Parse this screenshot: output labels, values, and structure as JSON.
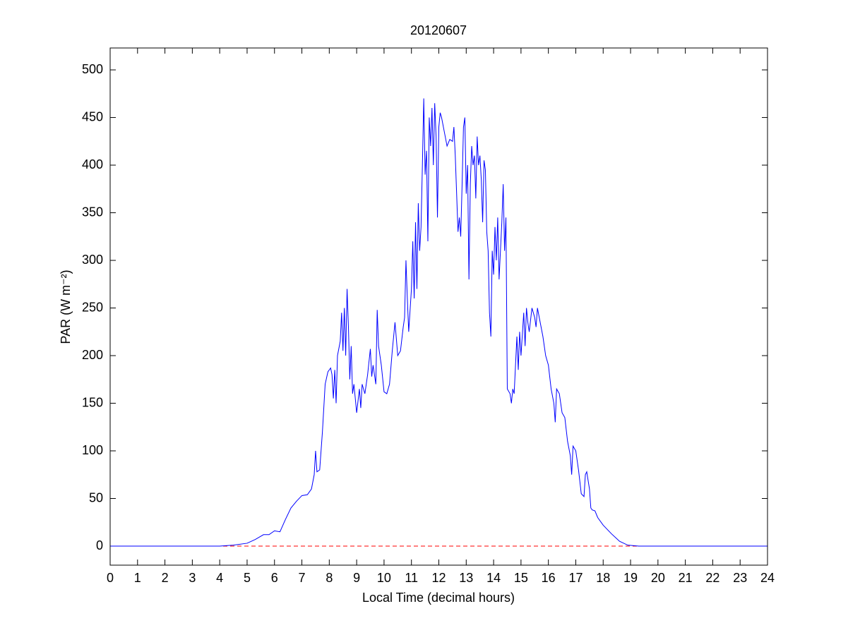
{
  "chart_data": {
    "type": "line",
    "title": "20120607",
    "xlabel": "Local Time (decimal hours)",
    "ylabel": "PAR (W m⁻²)",
    "xlim": [
      0,
      24
    ],
    "ylim": [
      -20,
      523
    ],
    "xticks": [
      0,
      1,
      2,
      3,
      4,
      5,
      6,
      7,
      8,
      9,
      10,
      11,
      12,
      13,
      14,
      15,
      16,
      17,
      18,
      19,
      20,
      21,
      22,
      23,
      24
    ],
    "yticks": [
      0,
      50,
      100,
      150,
      200,
      250,
      300,
      350,
      400,
      450,
      500
    ],
    "series": [
      {
        "color": "#0000ff",
        "linestyle": "solid",
        "x": [
          0,
          4,
          4.5,
          5,
          5.3,
          5.6,
          5.8,
          6.0,
          6.2,
          6.4,
          6.6,
          6.8,
          7.0,
          7.2,
          7.35,
          7.45,
          7.5,
          7.55,
          7.65,
          7.75,
          7.85,
          7.95,
          8.05,
          8.1,
          8.15,
          8.2,
          8.25,
          8.3,
          8.4,
          8.45,
          8.5,
          8.55,
          8.6,
          8.65,
          8.7,
          8.75,
          8.8,
          8.85,
          8.9,
          9.0,
          9.1,
          9.15,
          9.2,
          9.3,
          9.4,
          9.5,
          9.55,
          9.6,
          9.7,
          9.75,
          9.8,
          9.9,
          10.0,
          10.1,
          10.2,
          10.3,
          10.4,
          10.5,
          10.6,
          10.7,
          10.75,
          10.8,
          10.85,
          10.9,
          11.0,
          11.05,
          11.1,
          11.15,
          11.2,
          11.25,
          11.3,
          11.35,
          11.4,
          11.45,
          11.5,
          11.55,
          11.6,
          11.65,
          11.7,
          11.75,
          11.8,
          11.85,
          11.9,
          11.95,
          12.0,
          12.05,
          12.1,
          12.2,
          12.3,
          12.4,
          12.5,
          12.55,
          12.6,
          12.65,
          12.7,
          12.75,
          12.8,
          12.85,
          12.9,
          12.95,
          13.0,
          13.05,
          13.1,
          13.15,
          13.2,
          13.25,
          13.3,
          13.35,
          13.4,
          13.45,
          13.5,
          13.55,
          13.6,
          13.65,
          13.7,
          13.75,
          13.8,
          13.85,
          13.9,
          13.95,
          14.0,
          14.05,
          14.1,
          14.15,
          14.2,
          14.3,
          14.35,
          14.4,
          14.45,
          14.5,
          14.6,
          14.65,
          14.7,
          14.75,
          14.8,
          14.85,
          14.9,
          14.95,
          15.0,
          15.1,
          15.15,
          15.2,
          15.25,
          15.3,
          15.4,
          15.5,
          15.55,
          15.6,
          15.7,
          15.8,
          15.9,
          16.0,
          16.1,
          16.2,
          16.25,
          16.3,
          16.4,
          16.5,
          16.6,
          16.7,
          16.8,
          16.85,
          16.9,
          17.0,
          17.1,
          17.2,
          17.3,
          17.35,
          17.4,
          17.5,
          17.55,
          17.6,
          17.7,
          17.8,
          18.0,
          18.3,
          18.6,
          18.9,
          19.3,
          24
        ],
        "values": [
          0,
          0,
          1,
          3,
          7,
          12,
          12,
          16,
          15,
          28,
          40,
          47,
          53,
          54,
          60,
          75,
          100,
          78,
          80,
          120,
          170,
          183,
          187,
          180,
          155,
          185,
          150,
          200,
          215,
          245,
          205,
          250,
          200,
          270,
          230,
          175,
          210,
          160,
          170,
          140,
          165,
          145,
          170,
          160,
          180,
          207,
          178,
          190,
          170,
          248,
          210,
          190,
          162,
          160,
          170,
          205,
          235,
          200,
          205,
          230,
          240,
          300,
          260,
          225,
          270,
          320,
          260,
          340,
          270,
          360,
          310,
          335,
          400,
          470,
          390,
          415,
          320,
          450,
          420,
          460,
          400,
          465,
          430,
          345,
          440,
          455,
          450,
          435,
          420,
          427,
          425,
          440,
          410,
          370,
          330,
          345,
          325,
          380,
          440,
          450,
          370,
          400,
          280,
          380,
          420,
          400,
          410,
          365,
          430,
          400,
          410,
          385,
          340,
          405,
          395,
          330,
          310,
          245,
          220,
          310,
          285,
          335,
          300,
          345,
          280,
          340,
          380,
          310,
          345,
          165,
          160,
          150,
          165,
          160,
          190,
          220,
          185,
          225,
          200,
          245,
          210,
          250,
          235,
          225,
          250,
          240,
          230,
          250,
          235,
          220,
          200,
          190,
          165,
          150,
          130,
          165,
          160,
          140,
          135,
          110,
          95,
          75,
          105,
          100,
          80,
          55,
          52,
          75,
          78,
          60,
          40,
          38,
          37,
          30,
          22,
          13,
          5,
          1,
          0,
          0
        ]
      },
      {
        "color": "#ff0000",
        "linestyle": "dashed",
        "x": [
          0,
          24
        ],
        "values": [
          0,
          0
        ]
      }
    ]
  }
}
